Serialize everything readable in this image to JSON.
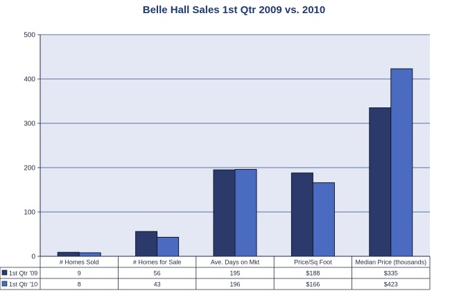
{
  "chart_data": {
    "type": "bar",
    "title": "Belle Hall Sales 1st Qtr 2009 vs. 2010",
    "categories": [
      "# Homes Sold",
      "# Homes for Sale",
      "Ave. Days on Mkt",
      "Price/Sq Foot",
      "Median Price (thousands)"
    ],
    "series": [
      {
        "name": "1st Qtr '09",
        "color": "#2b3a6b",
        "values": [
          9,
          56,
          195,
          188,
          335
        ],
        "table_labels": [
          "9",
          "56",
          "195",
          "$188",
          "$335"
        ]
      },
      {
        "name": "1st Qtr '10",
        "color": "#4a6bc0",
        "values": [
          8,
          43,
          196,
          166,
          423
        ],
        "table_labels": [
          "8",
          "43",
          "196",
          "$166",
          "$423"
        ]
      }
    ],
    "ylim": [
      0,
      500
    ],
    "yticks": [
      "0",
      "100",
      "200",
      "300",
      "400",
      "500"
    ],
    "grid": true,
    "legend": "data-table",
    "plot_background": "#e4e8f4",
    "grid_color": "#2f4a8a"
  }
}
